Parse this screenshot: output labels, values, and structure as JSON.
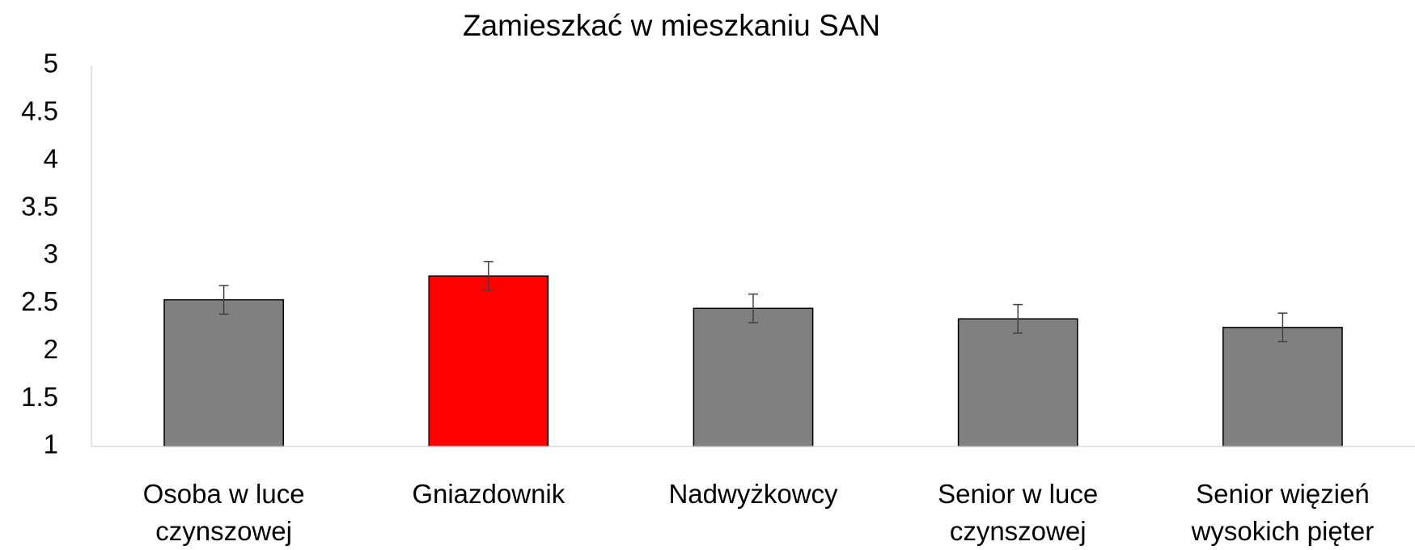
{
  "chart_data": {
    "type": "bar",
    "title": "Zamieszkać w mieszkaniu SAN",
    "categories": [
      "Osoba w luce czynszowej",
      "Gniazdownik",
      "Nadwyżkowcy",
      "Senior w luce czynszowej",
      "Senior więzień wysokich pięter"
    ],
    "values": [
      2.54,
      2.79,
      2.45,
      2.34,
      2.25
    ],
    "errors": [
      0.15,
      0.15,
      0.15,
      0.15,
      0.15
    ],
    "colors": [
      "#808080",
      "#ff0000",
      "#808080",
      "#808080",
      "#808080"
    ],
    "ylim": [
      1,
      5
    ],
    "yticks": [
      1,
      1.5,
      2,
      2.5,
      3,
      3.5,
      4,
      4.5,
      5
    ],
    "grid": false
  }
}
